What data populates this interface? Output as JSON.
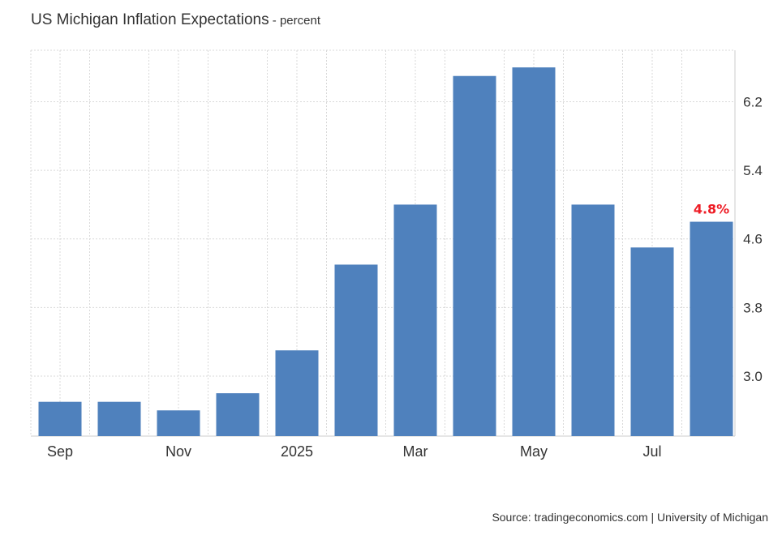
{
  "header": {
    "title": "US Michigan Inflation Expectations",
    "subtitle_separator": " - ",
    "subtitle": "percent"
  },
  "footer": {
    "source": "Source: tradingeconomics.com | University of Michigan"
  },
  "colors": {
    "bar": "#4f81bd",
    "last_value_label": "#ee1c25",
    "grid": "#d9d9d9",
    "axis_text": "#333333"
  },
  "chart_data": {
    "type": "bar",
    "title": "US Michigan Inflation Expectations",
    "subtitle": "percent",
    "categories": [
      "2024-09",
      "2024-10",
      "2024-11",
      "2024-12",
      "2025-01",
      "2025-02",
      "2025-03",
      "2025-04",
      "2025-05",
      "2025-06",
      "2025-07",
      "2025-08"
    ],
    "series": [
      {
        "values": [
          2.7,
          2.7,
          2.6,
          2.8,
          3.3,
          4.3,
          5.0,
          6.5,
          6.6,
          5.0,
          4.5,
          4.8
        ]
      }
    ],
    "x_tick_labels": [
      {
        "category": "2024-09",
        "label": "Sep"
      },
      {
        "category": "2024-11",
        "label": "Nov"
      },
      {
        "category": "2025-01",
        "label": "2025"
      },
      {
        "category": "2025-03",
        "label": "Mar"
      },
      {
        "category": "2025-05",
        "label": "May"
      },
      {
        "category": "2025-07",
        "label": "Jul"
      }
    ],
    "y_ticks": [
      3.0,
      3.8,
      4.6,
      5.4,
      6.2
    ],
    "y_tick_labels": [
      "3.0",
      "3.8",
      "4.6",
      "5.4",
      "6.2"
    ],
    "ylim": [
      2.3,
      6.8
    ],
    "y_axis_side": "right",
    "grid": true,
    "legend": false,
    "last_value_label": "4.8%"
  }
}
